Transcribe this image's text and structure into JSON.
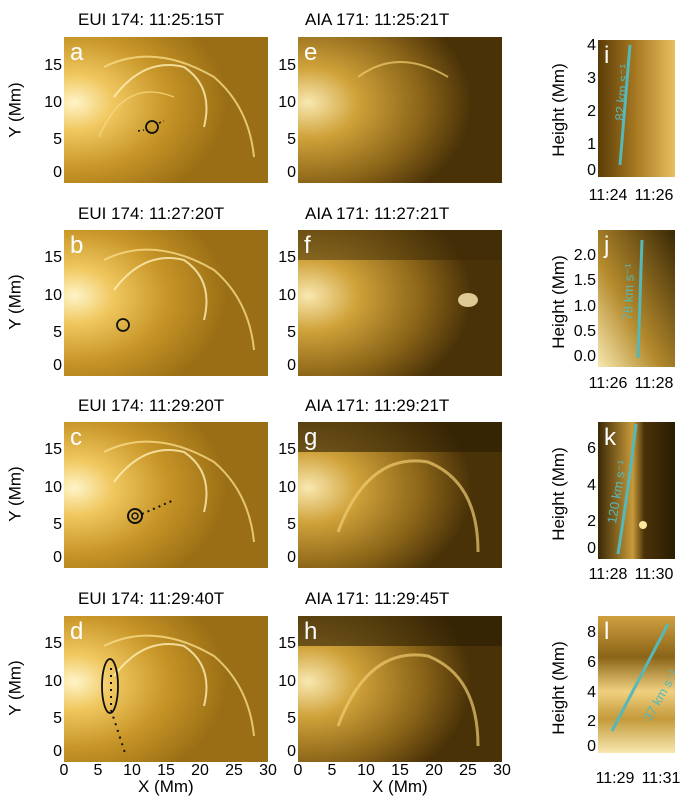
{
  "colors": {
    "accent_line": "#56b8b8",
    "marker": "#111111"
  },
  "col1": {
    "titles": [
      "EUI 174: 11:25:15T",
      "EUI 174: 11:27:20T",
      "EUI 174: 11:29:20T",
      "EUI 174: 11:29:40T"
    ],
    "letters": [
      "a",
      "b",
      "c",
      "d"
    ],
    "ylabel": "Y (Mm)",
    "yticks": [
      "15",
      "10",
      "5",
      "0"
    ],
    "xlabel": "X (Mm)",
    "xticks": [
      "0",
      "5",
      "10",
      "15",
      "20",
      "25",
      "30"
    ]
  },
  "col2": {
    "titles": [
      "AIA 171: 11:25:21T",
      "AIA 171: 11:27:21T",
      "AIA 171: 11:29:21T",
      "AIA 171: 11:29:45T"
    ],
    "letters": [
      "e",
      "f",
      "g",
      "h"
    ],
    "yticks": [
      "15",
      "10",
      "5",
      "0"
    ],
    "xlabel": "X (Mm)",
    "xticks": [
      "0",
      "5",
      "10",
      "15",
      "20",
      "25",
      "30"
    ]
  },
  "col3": {
    "ylabel": "Height (Mm)",
    "panels": [
      {
        "letter": "i",
        "yticks": [
          "4",
          "3",
          "2",
          "1",
          "0"
        ],
        "xticks": [
          "11:24",
          "11:26"
        ],
        "speed": "82 km s⁻¹"
      },
      {
        "letter": "j",
        "yticks": [
          "2.0",
          "1.5",
          "1.0",
          "0.5",
          "0.0"
        ],
        "xticks": [
          "11:26",
          "11:28"
        ],
        "speed": "78 km s⁻¹"
      },
      {
        "letter": "k",
        "yticks": [
          "6",
          "4",
          "2",
          "0"
        ],
        "xticks": [
          "11:28",
          "11:30"
        ],
        "speed": "120 km s⁻¹"
      },
      {
        "letter": "l",
        "yticks": [
          "8",
          "6",
          "4",
          "2",
          "0"
        ],
        "xticks": [
          "11:29",
          "11:31"
        ],
        "speed": "37 km s⁻¹"
      }
    ]
  }
}
